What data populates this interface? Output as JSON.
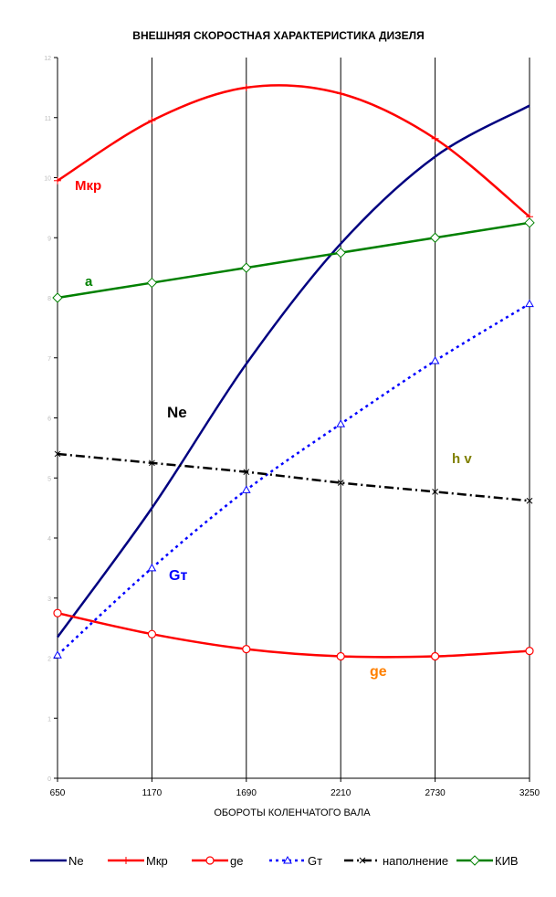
{
  "chart_data": {
    "type": "line",
    "title": "ВНЕШНЯЯ СКОРОСТНАЯ ХАРАКТЕРИСТИКА ДИЗЕЛЯ",
    "xlabel": "ОБОРОТЫ КОЛЕНЧАТОГО ВАЛА",
    "ylabel": "",
    "x": [
      650,
      1170,
      1690,
      2210,
      2730,
      3250
    ],
    "x_tick_labels": [
      "650",
      "1170",
      "1690",
      "2210",
      "2730",
      "3250"
    ],
    "ylim": [
      0,
      12
    ],
    "y_tick_labels": [
      "0",
      "1",
      "2",
      "3",
      "4",
      "5",
      "6",
      "7",
      "8",
      "9",
      "10",
      "11",
      "12"
    ],
    "grid": "vertical",
    "legend_position": "bottom",
    "series": [
      {
        "name": "Ne",
        "values": [
          2.35,
          4.5,
          6.9,
          8.9,
          10.35,
          11.2
        ],
        "color": "#000080",
        "dash": "solid",
        "marker": "none"
      },
      {
        "name": "Мкр",
        "values": [
          9.95,
          10.95,
          11.5,
          11.4,
          10.65,
          9.35
        ],
        "color": "#ff0000",
        "dash": "solid",
        "marker": "plus"
      },
      {
        "name": "ge",
        "values": [
          2.75,
          2.4,
          2.15,
          2.03,
          2.03,
          2.12
        ],
        "color": "#ff0000",
        "dash": "solid",
        "marker": "circle"
      },
      {
        "name": "Gт",
        "values": [
          2.05,
          3.5,
          4.8,
          5.9,
          6.95,
          7.9
        ],
        "color": "#0000ff",
        "dash": "dotted",
        "marker": "triangle"
      },
      {
        "name": "наполнение",
        "values": [
          5.4,
          5.25,
          5.1,
          4.92,
          4.77,
          4.62
        ],
        "color": "#000000",
        "dash": "dashdot",
        "marker": "x"
      },
      {
        "name": "КИВ",
        "values": [
          8.0,
          8.25,
          8.5,
          8.75,
          9.0,
          9.25
        ],
        "color": "#008000",
        "dash": "solid",
        "marker": "diamond"
      }
    ],
    "annotations": [
      {
        "text": "Мкр",
        "color": "#ff0000"
      },
      {
        "text": "a",
        "color": "#008000"
      },
      {
        "text": "Ne",
        "color": "#000000"
      },
      {
        "text": "h v",
        "color": "#808000"
      },
      {
        "text": "Gт",
        "color": "#0000ff"
      },
      {
        "text": "ge",
        "color": "#ff8000"
      }
    ]
  }
}
